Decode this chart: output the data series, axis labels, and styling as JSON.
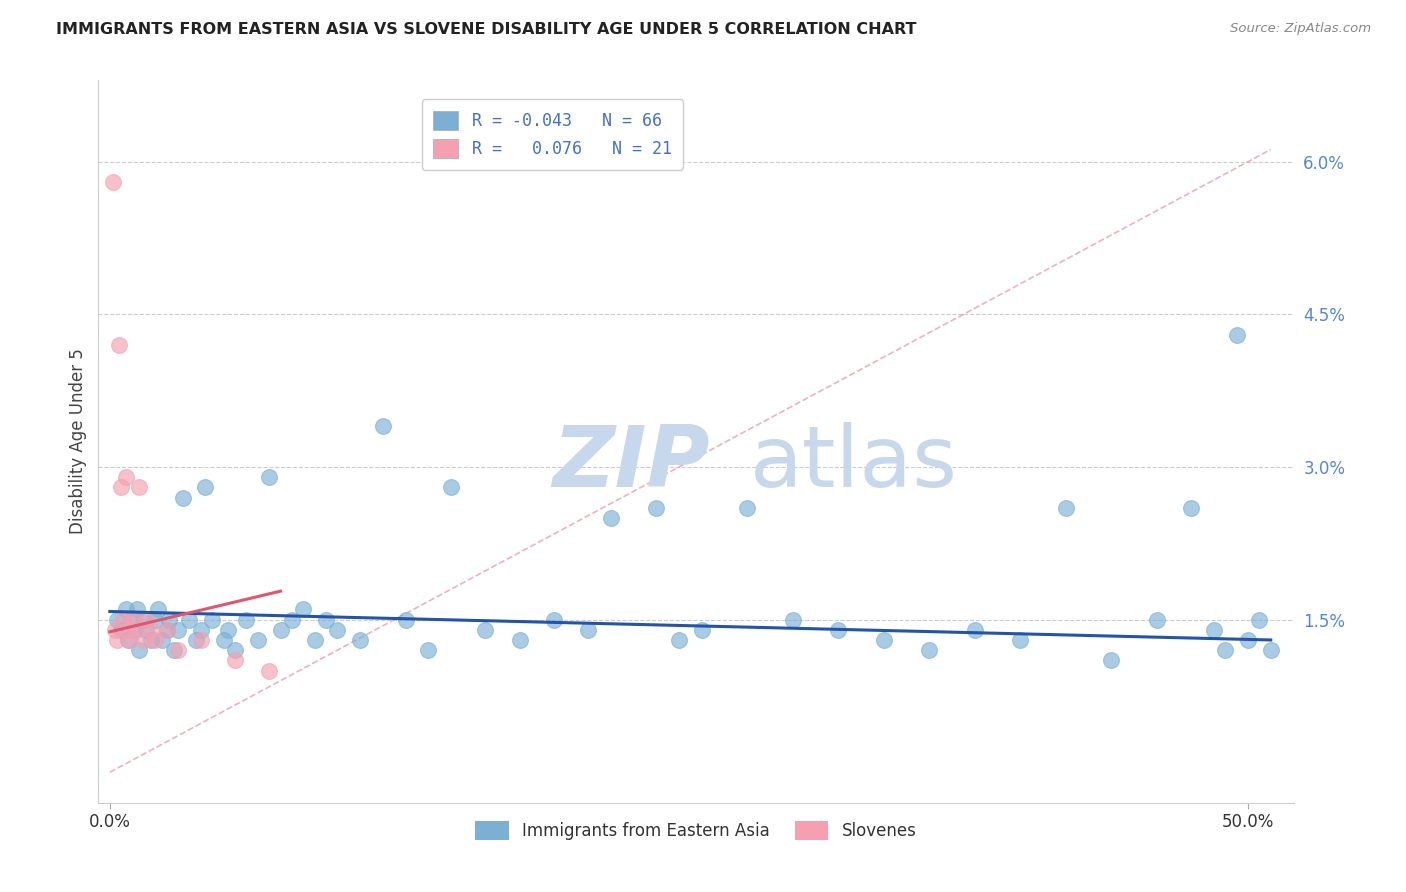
{
  "title": "IMMIGRANTS FROM EASTERN ASIA VS SLOVENE DISABILITY AGE UNDER 5 CORRELATION CHART",
  "source": "Source: ZipAtlas.com",
  "ylabel": "Disability Age Under 5",
  "xlim": [
    -0.5,
    52
  ],
  "ylim": [
    -0.3,
    6.8
  ],
  "ytick_vals": [
    1.5,
    3.0,
    4.5,
    6.0
  ],
  "ytick_labels": [
    "1.5%",
    "3.0%",
    "4.5%",
    "6.0%"
  ],
  "xtick_vals": [
    0,
    50
  ],
  "xtick_labels": [
    "0.0%",
    "50.0%"
  ],
  "blue_color": "#7BAFD4",
  "pink_color": "#F4A0B0",
  "blue_line_color": "#2255AA",
  "pink_line_color": "#E05570",
  "diag_line_color": "#E8A0AA",
  "ytick_color": "#5588CC",
  "xtick_color": "#333333",
  "blue_scatter_x": [
    0.3,
    0.5,
    0.7,
    0.8,
    1.0,
    1.1,
    1.2,
    1.3,
    1.5,
    1.6,
    1.8,
    2.0,
    2.1,
    2.3,
    2.5,
    2.6,
    2.8,
    3.0,
    3.2,
    3.5,
    3.8,
    4.0,
    4.2,
    4.5,
    5.0,
    5.2,
    5.5,
    6.0,
    6.5,
    7.0,
    7.5,
    8.0,
    8.5,
    9.0,
    9.5,
    10.0,
    11.0,
    12.0,
    13.0,
    14.0,
    15.0,
    16.5,
    18.0,
    19.5,
    21.0,
    22.0,
    24.0,
    25.0,
    26.0,
    28.0,
    30.0,
    32.0,
    34.0,
    36.0,
    38.0,
    40.0,
    42.0,
    44.0,
    46.0,
    47.5,
    48.5,
    49.0,
    49.5,
    50.0,
    50.5,
    51.0
  ],
  "blue_scatter_y": [
    1.5,
    1.4,
    1.6,
    1.3,
    1.5,
    1.4,
    1.6,
    1.2,
    1.5,
    1.4,
    1.3,
    1.5,
    1.6,
    1.3,
    1.4,
    1.5,
    1.2,
    1.4,
    2.7,
    1.5,
    1.3,
    1.4,
    2.8,
    1.5,
    1.3,
    1.4,
    1.2,
    1.5,
    1.3,
    2.9,
    1.4,
    1.5,
    1.6,
    1.3,
    1.5,
    1.4,
    1.3,
    3.4,
    1.5,
    1.2,
    2.8,
    1.4,
    1.3,
    1.5,
    1.4,
    2.5,
    2.6,
    1.3,
    1.4,
    2.6,
    1.5,
    1.4,
    1.3,
    1.2,
    1.4,
    1.3,
    2.6,
    1.1,
    1.5,
    2.6,
    1.4,
    1.2,
    4.3,
    1.3,
    1.5,
    1.2
  ],
  "pink_scatter_x": [
    0.15,
    0.25,
    0.3,
    0.4,
    0.5,
    0.6,
    0.7,
    0.8,
    0.9,
    1.0,
    1.1,
    1.3,
    1.5,
    1.6,
    1.8,
    2.0,
    2.5,
    3.0,
    4.0,
    5.5,
    7.0
  ],
  "pink_scatter_y": [
    5.8,
    1.4,
    1.3,
    4.2,
    2.8,
    1.5,
    2.9,
    1.4,
    1.3,
    1.5,
    1.4,
    2.8,
    1.3,
    1.5,
    1.4,
    1.3,
    1.4,
    1.2,
    1.3,
    1.1,
    1.0
  ],
  "blue_line_x": [
    0,
    51
  ],
  "blue_line_y": [
    1.58,
    1.3
  ],
  "pink_line_x": [
    0.0,
    7.5
  ],
  "pink_line_y": [
    1.38,
    1.78
  ],
  "diag_line_x": [
    0,
    51
  ],
  "diag_line_y": [
    0.0,
    6.12
  ],
  "watermark_zip_color": "#C8D8EC",
  "watermark_atlas_color": "#C8D8EC"
}
